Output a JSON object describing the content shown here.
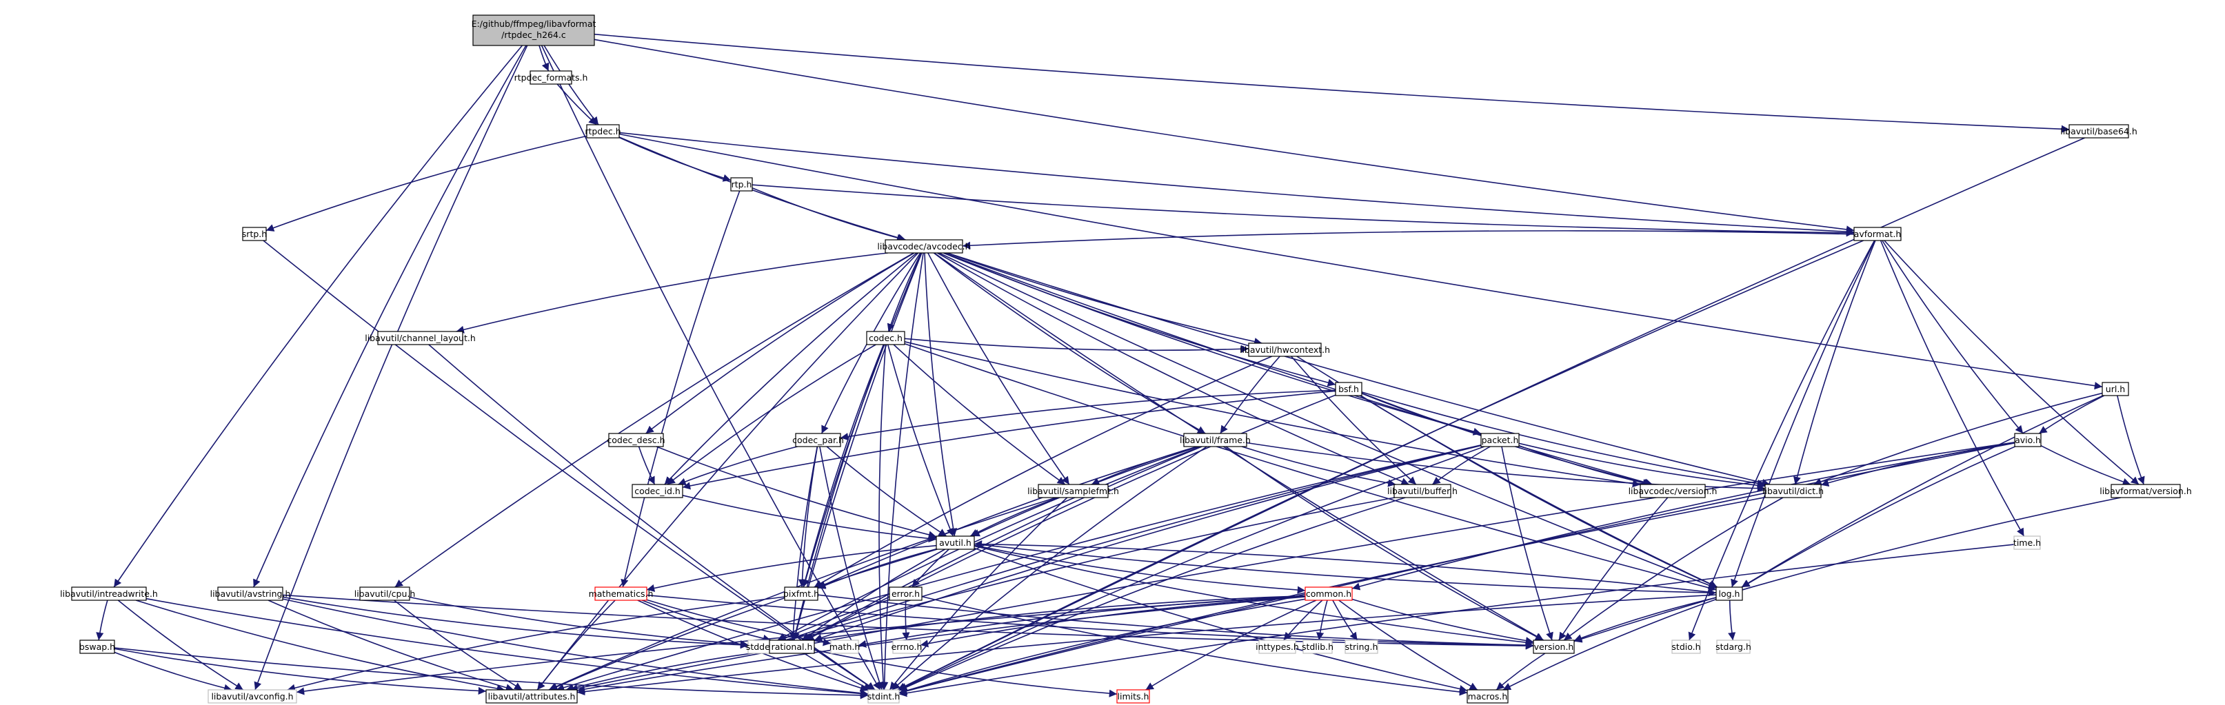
{
  "graph": {
    "nodes": [
      {
        "id": "root",
        "label": "E:/github/ffmpeg/libavformat",
        "label2": "/rtpdec_h264.c",
        "style": "root"
      },
      {
        "id": "rtpdec_formats",
        "label": "rtpdec_formats.h"
      },
      {
        "id": "rtpdec",
        "label": "rtpdec.h"
      },
      {
        "id": "base64",
        "label": "libavutil/base64.h"
      },
      {
        "id": "rtp",
        "label": "rtp.h"
      },
      {
        "id": "srtp",
        "label": "srtp.h"
      },
      {
        "id": "avformat",
        "label": "avformat.h"
      },
      {
        "id": "avcodec",
        "label": "libavcodec/avcodec.h"
      },
      {
        "id": "channel_layout",
        "label": "libavutil/channel_layout.h"
      },
      {
        "id": "codec",
        "label": "codec.h"
      },
      {
        "id": "hwcontext",
        "label": "libavutil/hwcontext.h"
      },
      {
        "id": "bsf",
        "label": "bsf.h"
      },
      {
        "id": "url",
        "label": "url.h"
      },
      {
        "id": "codec_desc",
        "label": "codec_desc.h"
      },
      {
        "id": "codec_par",
        "label": "codec_par.h"
      },
      {
        "id": "frame",
        "label": "libavutil/frame.h"
      },
      {
        "id": "packet",
        "label": "packet.h"
      },
      {
        "id": "avio",
        "label": "avio.h"
      },
      {
        "id": "codec_id",
        "label": "codec_id.h"
      },
      {
        "id": "samplefmt",
        "label": "libavutil/samplefmt.h"
      },
      {
        "id": "buffer",
        "label": "libavutil/buffer.h"
      },
      {
        "id": "lavc_version",
        "label": "libavcodec/version.h"
      },
      {
        "id": "dict",
        "label": "libavutil/dict.h"
      },
      {
        "id": "lavf_version",
        "label": "libavformat/version.h"
      },
      {
        "id": "avutil",
        "label": "avutil.h"
      },
      {
        "id": "time",
        "label": "time.h",
        "style": "gray"
      },
      {
        "id": "intreadwrite",
        "label": "libavutil/intreadwrite.h"
      },
      {
        "id": "avstring",
        "label": "libavutil/avstring.h"
      },
      {
        "id": "cpu",
        "label": "libavutil/cpu.h"
      },
      {
        "id": "mathematics",
        "label": "mathematics.h",
        "style": "red"
      },
      {
        "id": "pixfmt",
        "label": "pixfmt.h"
      },
      {
        "id": "error",
        "label": "error.h"
      },
      {
        "id": "common",
        "label": "common.h",
        "style": "red"
      },
      {
        "id": "log",
        "label": "log.h"
      },
      {
        "id": "bswap",
        "label": "bswap.h"
      },
      {
        "id": "stddef",
        "label": "stddef.h",
        "style": "gray"
      },
      {
        "id": "rational",
        "label": "rational.h"
      },
      {
        "id": "math",
        "label": "math.h",
        "style": "gray"
      },
      {
        "id": "errno",
        "label": "errno.h",
        "style": "gray"
      },
      {
        "id": "inttypes",
        "label": "inttypes.h",
        "style": "gray"
      },
      {
        "id": "stdlib",
        "label": "stdlib.h",
        "style": "gray"
      },
      {
        "id": "string",
        "label": "string.h",
        "style": "gray"
      },
      {
        "id": "version",
        "label": "version.h"
      },
      {
        "id": "stdio",
        "label": "stdio.h",
        "style": "gray"
      },
      {
        "id": "stdarg",
        "label": "stdarg.h",
        "style": "gray"
      },
      {
        "id": "avconfig",
        "label": "libavutil/avconfig.h",
        "style": "gray"
      },
      {
        "id": "attributes",
        "label": "libavutil/attributes.h"
      },
      {
        "id": "stdint",
        "label": "stdint.h",
        "style": "gray"
      },
      {
        "id": "limits",
        "label": "limits.h",
        "style": "red"
      },
      {
        "id": "macros",
        "label": "macros.h"
      }
    ],
    "edges": [
      [
        "root",
        "rtpdec_formats"
      ],
      [
        "root",
        "rtpdec"
      ],
      [
        "root",
        "base64"
      ],
      [
        "root",
        "avformat"
      ],
      [
        "root",
        "intreadwrite"
      ],
      [
        "root",
        "avstring"
      ],
      [
        "root",
        "avconfig"
      ],
      [
        "root",
        "stdint"
      ],
      [
        "rtpdec_formats",
        "rtpdec"
      ],
      [
        "rtpdec",
        "rtp"
      ],
      [
        "rtpdec",
        "srtp"
      ],
      [
        "rtpdec",
        "avformat"
      ],
      [
        "rtpdec",
        "avcodec"
      ],
      [
        "rtpdec",
        "url"
      ],
      [
        "rtp",
        "avformat"
      ],
      [
        "rtp",
        "avcodec"
      ],
      [
        "rtp",
        "mathematics"
      ],
      [
        "srtp",
        "stdint"
      ],
      [
        "base64",
        "stdint"
      ],
      [
        "avformat",
        "avcodec"
      ],
      [
        "avformat",
        "avio"
      ],
      [
        "avformat",
        "dict"
      ],
      [
        "avformat",
        "lavf_version"
      ],
      [
        "avformat",
        "time"
      ],
      [
        "avformat",
        "log"
      ],
      [
        "avformat",
        "stdio"
      ],
      [
        "avformat",
        "stdint"
      ],
      [
        "avcodec",
        "channel_layout"
      ],
      [
        "avcodec",
        "codec"
      ],
      [
        "avcodec",
        "hwcontext"
      ],
      [
        "avcodec",
        "bsf"
      ],
      [
        "avcodec",
        "codec_desc"
      ],
      [
        "avcodec",
        "codec_par"
      ],
      [
        "avcodec",
        "frame"
      ],
      [
        "avcodec",
        "packet"
      ],
      [
        "avcodec",
        "codec_id"
      ],
      [
        "avcodec",
        "samplefmt"
      ],
      [
        "avcodec",
        "buffer"
      ],
      [
        "avcodec",
        "lavc_version"
      ],
      [
        "avcodec",
        "dict"
      ],
      [
        "avcodec",
        "avutil"
      ],
      [
        "avcodec",
        "cpu"
      ],
      [
        "avcodec",
        "log"
      ],
      [
        "avcodec",
        "rational"
      ],
      [
        "avcodec",
        "attributes"
      ],
      [
        "avcodec",
        "pixfmt"
      ],
      [
        "avcodec",
        "stdint"
      ],
      [
        "avcodec",
        "version"
      ],
      [
        "channel_layout",
        "stdint"
      ],
      [
        "codec",
        "hwcontext"
      ],
      [
        "codec",
        "codec_id"
      ],
      [
        "codec",
        "avutil"
      ],
      [
        "codec",
        "samplefmt"
      ],
      [
        "codec",
        "pixfmt"
      ],
      [
        "codec",
        "rational"
      ],
      [
        "codec",
        "lavc_version"
      ],
      [
        "codec",
        "log"
      ],
      [
        "codec",
        "stdint"
      ],
      [
        "hwcontext",
        "frame"
      ],
      [
        "hwcontext",
        "buffer"
      ],
      [
        "hwcontext",
        "pixfmt"
      ],
      [
        "hwcontext",
        "log"
      ],
      [
        "bsf",
        "codec_par"
      ],
      [
        "bsf",
        "packet"
      ],
      [
        "bsf",
        "codec_id"
      ],
      [
        "bsf",
        "dict"
      ],
      [
        "bsf",
        "log"
      ],
      [
        "bsf",
        "rational"
      ],
      [
        "bsf",
        "lavc_version"
      ],
      [
        "url",
        "avio"
      ],
      [
        "url",
        "lavf_version"
      ],
      [
        "url",
        "dict"
      ],
      [
        "url",
        "log"
      ],
      [
        "codec_desc",
        "codec_id"
      ],
      [
        "codec_desc",
        "avutil"
      ],
      [
        "codec_par",
        "codec_id"
      ],
      [
        "codec_par",
        "avutil"
      ],
      [
        "codec_par",
        "pixfmt"
      ],
      [
        "codec_par",
        "rational"
      ],
      [
        "codec_par",
        "stdint"
      ],
      [
        "frame",
        "avutil"
      ],
      [
        "frame",
        "buffer"
      ],
      [
        "frame",
        "dict"
      ],
      [
        "frame",
        "samplefmt"
      ],
      [
        "frame",
        "pixfmt"
      ],
      [
        "frame",
        "rational"
      ],
      [
        "frame",
        "stddef"
      ],
      [
        "frame",
        "stdint"
      ],
      [
        "frame",
        "version"
      ],
      [
        "packet",
        "buffer"
      ],
      [
        "packet",
        "dict"
      ],
      [
        "packet",
        "rational"
      ],
      [
        "packet",
        "stddef"
      ],
      [
        "packet",
        "stdint"
      ],
      [
        "packet",
        "attributes"
      ],
      [
        "packet",
        "version"
      ],
      [
        "packet",
        "lavc_version"
      ],
      [
        "avio",
        "dict"
      ],
      [
        "avio",
        "log"
      ],
      [
        "avio",
        "common"
      ],
      [
        "avio",
        "lavf_version"
      ],
      [
        "avio",
        "attributes"
      ],
      [
        "avio",
        "stdint"
      ],
      [
        "codec_id",
        "avutil"
      ],
      [
        "samplefmt",
        "avutil"
      ],
      [
        "samplefmt",
        "attributes"
      ],
      [
        "samplefmt",
        "stdint"
      ],
      [
        "buffer",
        "stddef"
      ],
      [
        "buffer",
        "stdint"
      ],
      [
        "lavc_version",
        "version"
      ],
      [
        "dict",
        "stdint"
      ],
      [
        "dict",
        "version"
      ],
      [
        "lavf_version",
        "version"
      ],
      [
        "avutil",
        "attributes"
      ],
      [
        "avutil",
        "common"
      ],
      [
        "avutil",
        "error"
      ],
      [
        "avutil",
        "rational"
      ],
      [
        "avutil",
        "version"
      ],
      [
        "avutil",
        "macros"
      ],
      [
        "avutil",
        "mathematics"
      ],
      [
        "avutil",
        "log"
      ],
      [
        "avutil",
        "pixfmt"
      ],
      [
        "time",
        "stdint"
      ],
      [
        "intreadwrite",
        "bswap"
      ],
      [
        "intreadwrite",
        "avconfig"
      ],
      [
        "intreadwrite",
        "attributes"
      ],
      [
        "intreadwrite",
        "stdint"
      ],
      [
        "avstring",
        "stddef"
      ],
      [
        "avstring",
        "stdint"
      ],
      [
        "avstring",
        "attributes"
      ],
      [
        "avstring",
        "version"
      ],
      [
        "cpu",
        "attributes"
      ],
      [
        "cpu",
        "stddef"
      ],
      [
        "mathematics",
        "rational"
      ],
      [
        "mathematics",
        "attributes"
      ],
      [
        "mathematics",
        "stdint"
      ],
      [
        "mathematics",
        "math"
      ],
      [
        "mathematics",
        "version"
      ],
      [
        "pixfmt",
        "avconfig"
      ],
      [
        "pixfmt",
        "version"
      ],
      [
        "error",
        "errno"
      ],
      [
        "error",
        "stddef"
      ],
      [
        "error",
        "macros"
      ],
      [
        "common",
        "stddef"
      ],
      [
        "common",
        "errno"
      ],
      [
        "common",
        "inttypes"
      ],
      [
        "common",
        "stdlib"
      ],
      [
        "common",
        "string"
      ],
      [
        "common",
        "math"
      ],
      [
        "common",
        "limits"
      ],
      [
        "common",
        "attributes"
      ],
      [
        "common",
        "macros"
      ],
      [
        "common",
        "version"
      ],
      [
        "common",
        "stdint"
      ],
      [
        "common",
        "avconfig"
      ],
      [
        "log",
        "stdarg"
      ],
      [
        "log",
        "attributes"
      ],
      [
        "log",
        "version"
      ],
      [
        "log",
        "avutil"
      ],
      [
        "log",
        "macros"
      ],
      [
        "bswap",
        "stdint"
      ],
      [
        "bswap",
        "avconfig"
      ],
      [
        "bswap",
        "attributes"
      ],
      [
        "rational",
        "stdint"
      ],
      [
        "rational",
        "limits"
      ],
      [
        "rational",
        "attributes"
      ],
      [
        "version",
        "macros"
      ]
    ]
  }
}
